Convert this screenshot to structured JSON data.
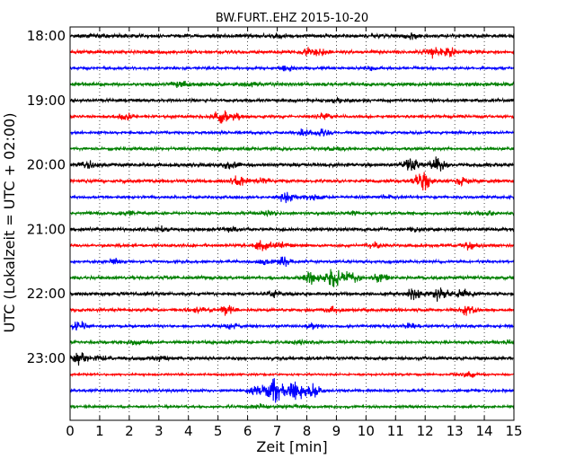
{
  "chart_data": {
    "type": "line",
    "title": "BW.FURT..EHZ 2015-10-20",
    "xlabel": "Zeit  [min]",
    "ylabel": "UTC (Lokalzeit = UTC + 02:00)",
    "xlim": [
      0,
      15
    ],
    "x_ticks": [
      "0",
      "1",
      "2",
      "3",
      "4",
      "5",
      "6",
      "7",
      "8",
      "9",
      "10",
      "11",
      "12",
      "13",
      "14",
      "15"
    ],
    "y_ticks": [
      "18:00",
      "19:00",
      "20:00",
      "21:00",
      "22:00",
      "23:00"
    ],
    "grid": "vertical dotted",
    "trace_colors": [
      "#000000",
      "#ff0000",
      "#0000ff",
      "#008000"
    ],
    "series": [
      {
        "start": "18:00",
        "noise": 2.2,
        "bursts": [
          [
            7.0,
            2
          ],
          [
            11.5,
            3
          ]
        ]
      },
      {
        "start": "18:15",
        "noise": 2.0,
        "bursts": [
          [
            8.0,
            4
          ],
          [
            8.5,
            3
          ],
          [
            12.2,
            6
          ],
          [
            12.8,
            5
          ]
        ]
      },
      {
        "start": "18:30",
        "noise": 1.6,
        "bursts": [
          [
            7.3,
            3
          ],
          [
            10.2,
            2
          ]
        ]
      },
      {
        "start": "18:45",
        "noise": 2.2,
        "bursts": [
          [
            3.7,
            3
          ],
          [
            6.0,
            2
          ]
        ]
      },
      {
        "start": "19:00",
        "noise": 2.0,
        "bursts": [
          [
            9.0,
            2
          ]
        ]
      },
      {
        "start": "19:15",
        "noise": 1.8,
        "bursts": [
          [
            1.9,
            5
          ],
          [
            5.1,
            7
          ],
          [
            5.6,
            4
          ],
          [
            8.6,
            3
          ]
        ]
      },
      {
        "start": "19:30",
        "noise": 1.6,
        "bursts": [
          [
            7.9,
            4
          ],
          [
            8.6,
            5
          ]
        ]
      },
      {
        "start": "19:45",
        "noise": 1.8,
        "bursts": [
          [
            5.0,
            2
          ],
          [
            9.0,
            2
          ]
        ]
      },
      {
        "start": "20:00",
        "noise": 2.2,
        "bursts": [
          [
            0.6,
            4
          ],
          [
            5.4,
            4
          ],
          [
            11.5,
            7
          ],
          [
            12.4,
            8
          ]
        ]
      },
      {
        "start": "20:15",
        "noise": 2.0,
        "bursts": [
          [
            5.7,
            5
          ],
          [
            6.5,
            3
          ],
          [
            11.9,
            11
          ],
          [
            13.3,
            4
          ]
        ]
      },
      {
        "start": "20:30",
        "noise": 1.6,
        "bursts": [
          [
            7.3,
            6
          ],
          [
            8.2,
            4
          ],
          [
            10.7,
            2
          ]
        ]
      },
      {
        "start": "20:45",
        "noise": 1.8,
        "bursts": [
          [
            2.0,
            2
          ],
          [
            6.7,
            3
          ],
          [
            9.5,
            2
          ],
          [
            14.1,
            2
          ]
        ]
      },
      {
        "start": "21:00",
        "noise": 2.0,
        "bursts": [
          [
            3.1,
            3
          ],
          [
            5.4,
            2
          ],
          [
            11.7,
            2
          ]
        ]
      },
      {
        "start": "21:15",
        "noise": 1.8,
        "bursts": [
          [
            6.5,
            6
          ],
          [
            7.1,
            4
          ],
          [
            10.3,
            3
          ],
          [
            13.5,
            4
          ]
        ]
      },
      {
        "start": "21:30",
        "noise": 1.6,
        "bursts": [
          [
            1.5,
            3
          ],
          [
            6.6,
            3
          ],
          [
            7.2,
            5
          ]
        ]
      },
      {
        "start": "21:45",
        "noise": 2.0,
        "bursts": [
          [
            8.2,
            9
          ],
          [
            8.9,
            12
          ],
          [
            9.5,
            7
          ],
          [
            10.5,
            5
          ]
        ]
      },
      {
        "start": "22:00",
        "noise": 2.0,
        "bursts": [
          [
            6.9,
            3
          ],
          [
            11.6,
            6
          ],
          [
            12.5,
            8
          ],
          [
            13.3,
            5
          ]
        ]
      },
      {
        "start": "22:15",
        "noise": 1.8,
        "bursts": [
          [
            4.3,
            3
          ],
          [
            5.3,
            6
          ],
          [
            8.9,
            3
          ],
          [
            13.4,
            5
          ]
        ]
      },
      {
        "start": "22:30",
        "noise": 1.6,
        "bursts": [
          [
            0.3,
            5
          ],
          [
            5.4,
            3
          ],
          [
            8.2,
            3
          ],
          [
            11.5,
            4
          ]
        ]
      },
      {
        "start": "22:45",
        "noise": 1.8,
        "bursts": [
          [
            2.2,
            2
          ],
          [
            7.8,
            2
          ],
          [
            14.7,
            2
          ]
        ]
      },
      {
        "start": "23:00",
        "noise": 2.0,
        "bursts": [
          [
            0.3,
            7
          ],
          [
            1.0,
            3
          ],
          [
            3.0,
            2
          ]
        ]
      },
      {
        "start": "23:15",
        "noise": 1.2,
        "bursts": [
          [
            13.5,
            3
          ]
        ]
      },
      {
        "start": "23:30",
        "noise": 1.6,
        "bursts": [
          [
            6.3,
            8
          ],
          [
            6.9,
            14
          ],
          [
            7.5,
            10
          ],
          [
            7.9,
            9
          ],
          [
            8.3,
            6
          ]
        ]
      },
      {
        "start": "23:45",
        "noise": 1.6,
        "bursts": [
          [
            6.5,
            3
          ],
          [
            7.7,
            2
          ]
        ]
      }
    ]
  }
}
